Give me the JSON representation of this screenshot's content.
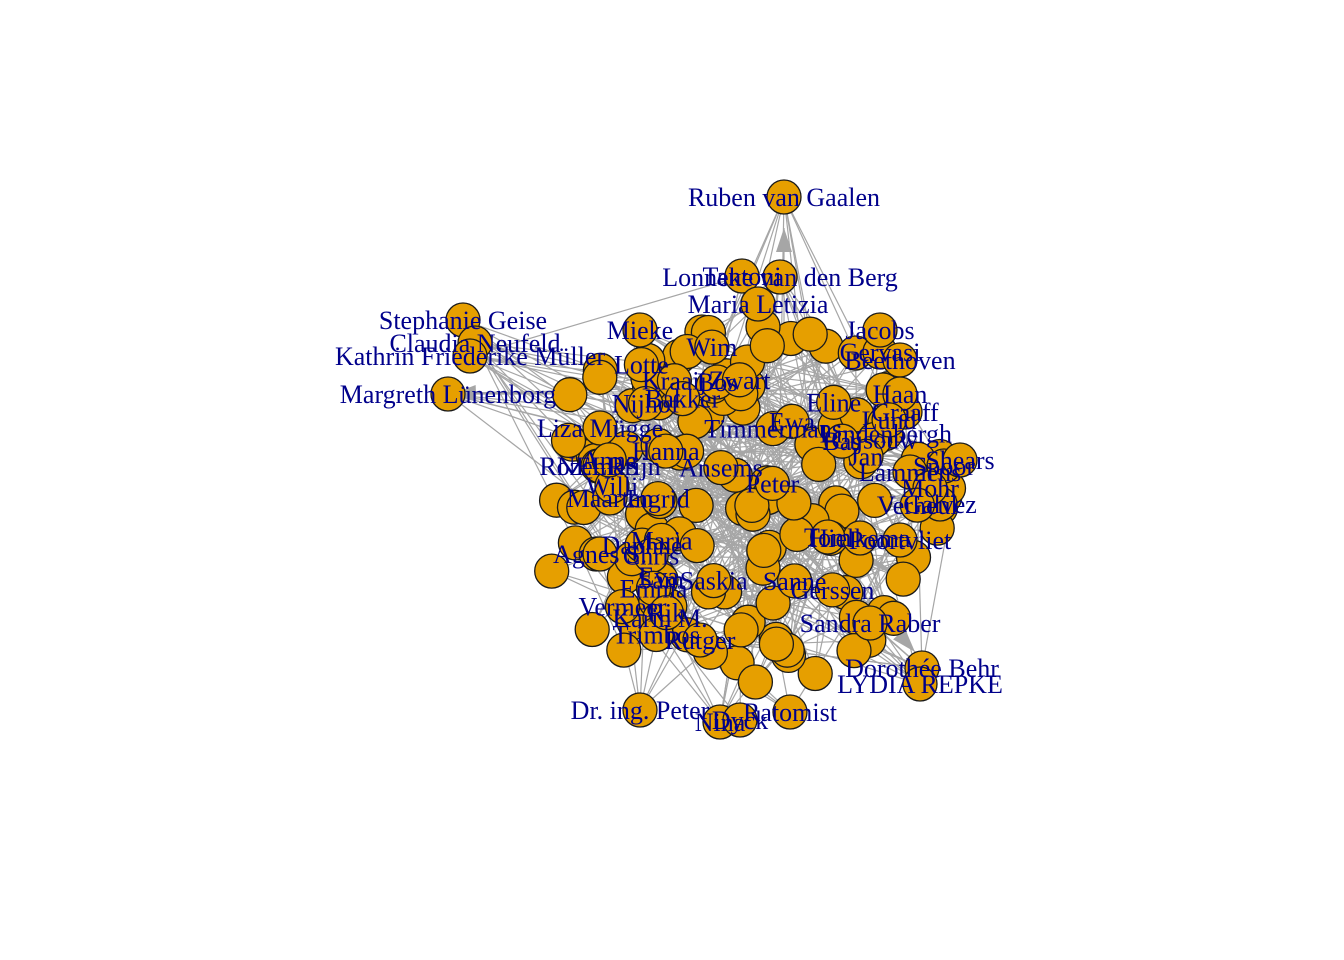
{
  "graph": {
    "node_color": "#E69F00",
    "label_color": "#00008B",
    "edge_color": "#A6A6A6",
    "labels": [
      "Ruben van Gaalen",
      "Tantoni",
      "Lonneke van den Berg",
      "Maria Letizia",
      "Stephanie Geise",
      "Mieke",
      "Claudia Neufeld",
      "Kathrin Friederike Müller",
      "Margreth Lünenborg",
      "Liza Mügge",
      "NELRS",
      "Rozemarijn",
      "Maarten",
      "Willi",
      "Agnes S.",
      "Karin M.",
      "Rutger",
      "Dr. ing. Peter",
      "Nina",
      "Dyck",
      "Ratomist",
      "Dorothée Behr",
      "LYDIA REPKE",
      "Galvez",
      "Sandra Raber",
      "Hielkema",
      "Gervasi",
      "Jacobs",
      "Beethoven",
      "Graaff",
      "Spoor",
      "Shears",
      "Poortvliet",
      "Haan",
      "Lammens",
      "Mohr",
      "Verheul",
      "Saskia",
      "Bos",
      "Trimbos",
      "Zwart",
      "Kraaij",
      "Timmermans",
      "Vermeer",
      "Ansems",
      "Bakker",
      "Lindenbergh",
      "Gerssen",
      "Cijsouw",
      "Nijhof",
      "Lund",
      "Eva",
      "Ewa",
      "Sanne",
      "Daphne",
      "Jan",
      "Wim",
      "Tom",
      "Anna",
      "Maria",
      "Peter",
      "Sam",
      "Lotte",
      "Ingrid",
      "Chris",
      "Emma",
      "Rik",
      "Hanna",
      "Bas",
      "Eline"
    ]
  }
}
